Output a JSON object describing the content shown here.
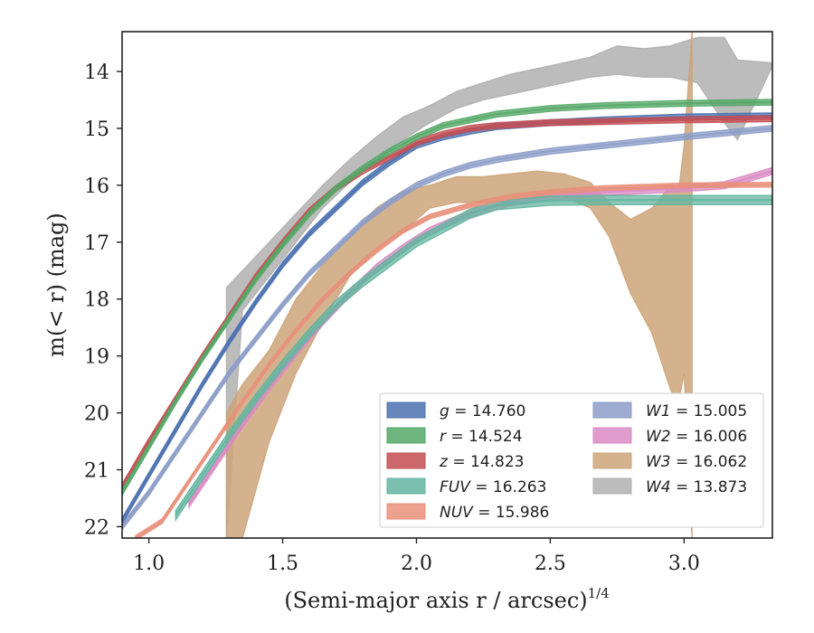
{
  "chart_data": {
    "type": "line",
    "title": "",
    "xlabel": "(Semi-major axis r / arcsec)",
    "xlabel_sup": "1/4",
    "ylabel": "m(< r) (mag)",
    "xlim": [
      0.9,
      3.33
    ],
    "ylim": [
      22.2,
      13.3
    ],
    "y_inverted": true,
    "grid": false,
    "legend_position": "lower-right",
    "xticks": [
      "1.0",
      "1.5",
      "2.0",
      "2.5",
      "3.0"
    ],
    "yticks": [
      "14",
      "15",
      "16",
      "17",
      "18",
      "19",
      "20",
      "21",
      "22"
    ],
    "series": [
      {
        "name": "g = 14.760",
        "color": "#4C72B0",
        "x": [
          0.9,
          1.0,
          1.1,
          1.2,
          1.3,
          1.4,
          1.5,
          1.6,
          1.7,
          1.8,
          1.9,
          2.0,
          2.1,
          2.2,
          2.3,
          2.5,
          2.7,
          3.0,
          3.33
        ],
        "y": [
          21.9,
          21.1,
          20.3,
          19.5,
          18.75,
          18.05,
          17.4,
          16.85,
          16.4,
          15.95,
          15.6,
          15.3,
          15.15,
          15.05,
          14.97,
          14.9,
          14.85,
          14.8,
          14.78
        ],
        "band": 0.05
      },
      {
        "name": "r = 14.524",
        "color": "#55A868",
        "x": [
          0.9,
          1.0,
          1.1,
          1.2,
          1.3,
          1.4,
          1.5,
          1.6,
          1.7,
          1.8,
          1.9,
          2.0,
          2.1,
          2.2,
          2.3,
          2.5,
          2.7,
          3.0,
          3.33
        ],
        "y": [
          21.4,
          20.6,
          19.8,
          19.05,
          18.35,
          17.65,
          17.05,
          16.5,
          16.05,
          15.7,
          15.4,
          15.15,
          14.95,
          14.85,
          14.75,
          14.65,
          14.6,
          14.56,
          14.54
        ],
        "band": 0.05
      },
      {
        "name": "z = 14.823",
        "color": "#C44E52",
        "x": [
          0.9,
          1.0,
          1.1,
          1.2,
          1.3,
          1.4,
          1.5,
          1.6,
          1.7,
          1.8,
          1.9,
          2.0,
          2.1,
          2.2,
          2.3,
          2.5,
          2.7,
          3.0,
          3.33
        ],
        "y": [
          21.3,
          20.5,
          19.75,
          19.0,
          18.3,
          17.6,
          17.0,
          16.45,
          16.05,
          15.75,
          15.5,
          15.25,
          15.1,
          15.0,
          14.95,
          14.9,
          14.88,
          14.85,
          14.83
        ],
        "band": 0.05
      },
      {
        "name": "FUV = 16.263",
        "color": "#64B5A0",
        "x": [
          1.1,
          1.2,
          1.3,
          1.4,
          1.5,
          1.6,
          1.7,
          1.8,
          1.9,
          2.0,
          2.1,
          2.2,
          2.3,
          2.5,
          2.7,
          3.0,
          3.33
        ],
        "y": [
          21.8,
          21.1,
          20.4,
          19.75,
          19.15,
          18.6,
          18.1,
          17.7,
          17.35,
          17.0,
          16.75,
          16.5,
          16.35,
          16.27,
          16.26,
          16.26,
          16.26
        ],
        "band": 0.08
      },
      {
        "name": "NUV = 15.986",
        "color": "#E8907A",
        "x": [
          0.95,
          1.05,
          1.15,
          1.25,
          1.35,
          1.45,
          1.55,
          1.65,
          1.75,
          1.85,
          1.95,
          2.05,
          2.2,
          2.35,
          2.5,
          2.7,
          3.0,
          3.33
        ],
        "y": [
          22.2,
          21.9,
          21.2,
          20.5,
          19.8,
          19.15,
          18.55,
          18.0,
          17.55,
          17.15,
          16.8,
          16.55,
          16.35,
          16.2,
          16.12,
          16.05,
          16.0,
          15.99
        ],
        "band": 0.04
      },
      {
        "name": "W1 = 15.005",
        "color": "#8C9DC8",
        "x": [
          0.9,
          1.0,
          1.1,
          1.2,
          1.3,
          1.4,
          1.5,
          1.6,
          1.7,
          1.8,
          1.9,
          2.0,
          2.1,
          2.2,
          2.3,
          2.5,
          2.7,
          3.0,
          3.33
        ],
        "y": [
          22.0,
          21.4,
          20.7,
          20.0,
          19.3,
          18.7,
          18.1,
          17.55,
          17.1,
          16.65,
          16.3,
          16.0,
          15.8,
          15.65,
          15.55,
          15.4,
          15.3,
          15.15,
          15.0
        ],
        "band": 0.05
      },
      {
        "name": "W2 = 16.006",
        "color": "#DA8BC3",
        "x": [
          1.15,
          1.25,
          1.35,
          1.45,
          1.55,
          1.65,
          1.75,
          1.85,
          1.95,
          2.05,
          2.2,
          2.35,
          2.5,
          2.7,
          3.0,
          3.15,
          3.33
        ],
        "y": [
          21.6,
          20.9,
          20.2,
          19.55,
          18.95,
          18.4,
          17.9,
          17.45,
          17.1,
          16.8,
          16.5,
          16.3,
          16.2,
          16.12,
          16.05,
          16.0,
          15.75
        ],
        "band": 0.06
      },
      {
        "name": "W3 = 16.062",
        "color": "#CCA57A",
        "x": [
          1.29,
          1.35,
          1.45,
          1.55,
          1.65,
          1.75,
          1.85,
          1.95,
          2.05,
          2.15,
          2.25,
          2.35,
          2.45,
          2.55,
          2.65,
          2.72,
          2.8,
          2.88,
          2.95,
          2.98,
          3.0,
          3.03
        ],
        "y": [
          21.0,
          20.2,
          19.3,
          18.5,
          17.9,
          17.3,
          16.8,
          16.45,
          16.2,
          16.1,
          16.1,
          16.05,
          16.0,
          16.05,
          16.15,
          16.6,
          17.2,
          17.8,
          18.6,
          19.0,
          18.5,
          16.1
        ],
        "band_lower": [
          22.2,
          22.2,
          20.5,
          19.3,
          18.4,
          17.6,
          17.1,
          16.8,
          16.4,
          16.3,
          16.3,
          16.3,
          16.2,
          16.2,
          16.4,
          16.9,
          17.9,
          18.6,
          19.6,
          19.8,
          19.3,
          22.2
        ],
        "band_upper": [
          20.0,
          19.5,
          18.9,
          18.0,
          17.4,
          16.9,
          16.4,
          16.1,
          16.0,
          15.85,
          15.85,
          15.8,
          15.75,
          15.8,
          15.95,
          16.3,
          16.6,
          16.4,
          16.0,
          16.1,
          15.3,
          13.3
        ]
      },
      {
        "name": "W4 = 13.873",
        "color": "#B0B0B0",
        "x": [
          1.29,
          1.35,
          1.45,
          1.55,
          1.65,
          1.75,
          1.85,
          1.95,
          2.05,
          2.15,
          2.25,
          2.35,
          2.45,
          2.55,
          2.65,
          2.75,
          2.85,
          2.95,
          3.05,
          3.15,
          3.2,
          3.33
        ],
        "y": [
          18.2,
          17.85,
          17.3,
          16.75,
          16.2,
          15.75,
          15.35,
          15.0,
          14.75,
          14.5,
          14.35,
          14.25,
          14.15,
          14.05,
          14.0,
          13.95,
          13.9,
          13.85,
          13.95,
          14.0,
          13.9,
          13.87
        ],
        "band_lower": [
          22.2,
          18.2,
          17.6,
          17.0,
          16.4,
          15.95,
          15.55,
          15.2,
          14.9,
          14.65,
          14.5,
          14.4,
          14.3,
          14.2,
          14.1,
          14.05,
          14.1,
          14.1,
          14.2,
          14.9,
          15.2,
          13.9
        ],
        "band_upper": [
          17.8,
          17.5,
          17.0,
          16.5,
          16.0,
          15.55,
          15.15,
          14.8,
          14.6,
          14.35,
          14.2,
          14.05,
          13.95,
          13.85,
          13.75,
          13.55,
          13.6,
          13.55,
          13.4,
          13.4,
          13.8,
          13.85
        ]
      }
    ],
    "legend_entries": [
      {
        "label": "g = 14.760",
        "color": "#4C72B0"
      },
      {
        "label": "r = 14.524",
        "color": "#55A868"
      },
      {
        "label": "z = 14.823",
        "color": "#C44E52"
      },
      {
        "label": "FUV = 16.263",
        "color": "#64B5A0"
      },
      {
        "label": "NUV = 15.986",
        "color": "#E8907A"
      },
      {
        "label": "W1 = 15.005",
        "color": "#8C9DC8"
      },
      {
        "label": "W2 = 16.006",
        "color": "#DA8BC3"
      },
      {
        "label": "W3 = 16.062",
        "color": "#CCA57A"
      },
      {
        "label": "W4 = 13.873",
        "color": "#B0B0B0"
      }
    ]
  }
}
